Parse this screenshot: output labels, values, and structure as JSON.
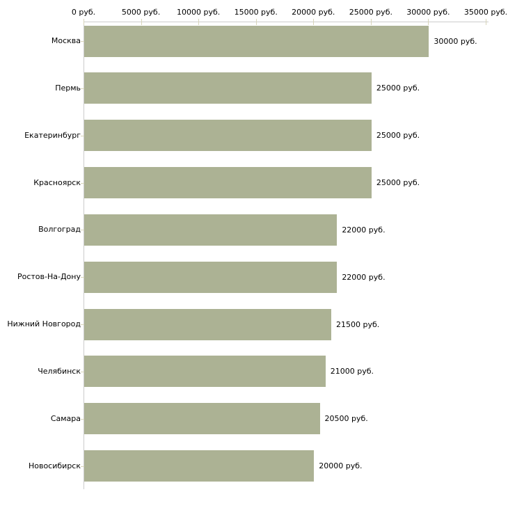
{
  "chart_data": {
    "type": "bar",
    "orientation": "horizontal",
    "title": "",
    "xlabel": "",
    "ylabel": "",
    "unit": "руб.",
    "categories": [
      "Москва",
      "Пермь",
      "Екатеринбург",
      "Красноярск",
      "Волгоград",
      "Ростов-На-Дону",
      "Нижний Новгород",
      "Челябинск",
      "Самара",
      "Новосибирск"
    ],
    "values": [
      30000,
      25000,
      25000,
      25000,
      22000,
      22000,
      21500,
      21000,
      20500,
      20000
    ],
    "value_labels": [
      "30000 руб.",
      "25000 руб.",
      "25000 руб.",
      "25000 руб.",
      "22000 руб.",
      "22000 руб.",
      "21500 руб.",
      "21000 руб.",
      "20500 руб.",
      "20000 руб."
    ],
    "x_axis": {
      "position": "top",
      "min": 0,
      "max": 35000,
      "tick_values": [
        0,
        5000,
        10000,
        15000,
        20000,
        25000,
        30000,
        35000
      ],
      "tick_labels": [
        "0 руб.",
        "5000 руб.",
        "10000 руб.",
        "15000 руб.",
        "20000 руб.",
        "25000 руб.",
        "30000 руб.",
        "35000 руб."
      ]
    },
    "grid": false,
    "legend": false,
    "colors": {
      "bar": "#acb294",
      "axis_line": "#cccccc",
      "tick": "#d8d5ba",
      "text": "#000000",
      "background": "#ffffff"
    }
  }
}
